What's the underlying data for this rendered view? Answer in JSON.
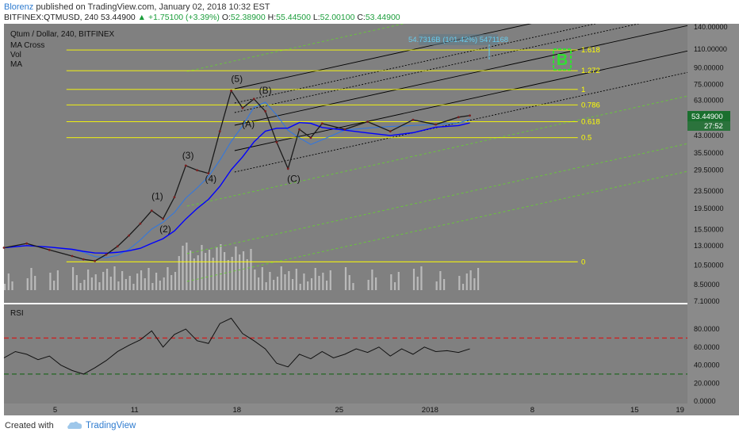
{
  "header": {
    "author": "Blorenz",
    "published": "published on TradingView.com, January 02, 2018 10:32 EST",
    "symbol_line": "BITFINEX:QTMUSD, 240",
    "last": "53.44900",
    "change_arrow": "▲",
    "change": "+1.75100 (+3.39%)",
    "open_label": "O:",
    "open": "52.38900",
    "high_label": "H:",
    "high": "55.44500",
    "low_label": "L:",
    "low": "52.00100",
    "close_label": "C:",
    "close": "53.44900"
  },
  "legend": {
    "title": "Qtum / Dollar, 240, BITFINEX",
    "items": [
      "MA Cross",
      "Vol",
      "MA"
    ]
  },
  "price_label": "53.44900",
  "countdown": "27:52",
  "measure_label": "54.7316B (101.42%) 5471168",
  "rsi_label": "RSI",
  "footer": {
    "created": "Created with",
    "brand": "TradingView"
  },
  "colors": {
    "background": "#808080",
    "fib": "#ffff00",
    "channel_black": "#000000",
    "channel_green": "#66cc33",
    "ma_fast": "#3377dd",
    "ma_slow": "#0000ff",
    "wave_path": "#2a2a2a",
    "price_label_bg": "#1a6f2e",
    "target_box": "#33dd33"
  },
  "chart_data": [
    {
      "type": "line",
      "title": "Qtum / Dollar, 240, BITFINEX",
      "y_scale": "log",
      "y_ticks": [
        "140.00000",
        "110.00000",
        "90.00000",
        "75.00000",
        "63.00000",
        "53.00000",
        "43.00000",
        "35.50000",
        "29.50000",
        "23.50000",
        "19.50000",
        "15.50000",
        "13.00000",
        "10.50000",
        "8.50000",
        "7.10000"
      ],
      "x_ticks": [
        "5",
        "11",
        "18",
        "25",
        "2018",
        "8",
        "15",
        "19"
      ],
      "price_series": [
        {
          "day": 0,
          "price": 12.7
        },
        {
          "day": 2,
          "price": 13.3
        },
        {
          "day": 4,
          "price": 12.4
        },
        {
          "day": 6,
          "price": 11.6
        },
        {
          "day": 7,
          "price": 11.2
        },
        {
          "day": 8,
          "price": 11.0
        },
        {
          "day": 9,
          "price": 11.8
        },
        {
          "day": 10,
          "price": 12.9
        },
        {
          "day": 11,
          "price": 14.5
        },
        {
          "day": 12,
          "price": 16.5
        },
        {
          "day": 13,
          "price": 19.0
        },
        {
          "day": 14,
          "price": 17.4
        },
        {
          "day": 15,
          "price": 22.0
        },
        {
          "day": 16,
          "price": 31.0
        },
        {
          "day": 17,
          "price": 29.5
        },
        {
          "day": 18,
          "price": 28.5
        },
        {
          "day": 19,
          "price": 45.0
        },
        {
          "day": 20,
          "price": 70.0
        },
        {
          "day": 21,
          "price": 58.0
        },
        {
          "day": 22,
          "price": 64.0
        },
        {
          "day": 23,
          "price": 56.0
        },
        {
          "day": 24,
          "price": 40.0
        },
        {
          "day": 25,
          "price": 30.0
        },
        {
          "day": 26,
          "price": 46.0
        },
        {
          "day": 27,
          "price": 42.0
        },
        {
          "day": 28,
          "price": 49.0
        },
        {
          "day": 30,
          "price": 46.0
        },
        {
          "day": 32,
          "price": 50.0
        },
        {
          "day": 34,
          "price": 45.0
        },
        {
          "day": 36,
          "price": 51.0
        },
        {
          "day": 38,
          "price": 48.5
        },
        {
          "day": 40,
          "price": 52.5
        },
        {
          "day": 41,
          "price": 53.449
        }
      ],
      "fib_levels": [
        {
          "label": "1.618",
          "price": 109.0
        },
        {
          "label": "1.272",
          "price": 87.0
        },
        {
          "label": "1",
          "price": 71.0
        },
        {
          "label": "0.786",
          "price": 60.0
        },
        {
          "label": "0.618",
          "price": 50.0
        },
        {
          "label": "0.5",
          "price": 42.0
        },
        {
          "label": "0",
          "price": 10.9
        }
      ],
      "wave_labels": [
        {
          "label": "(1)",
          "day": 13.5,
          "price": 21.5
        },
        {
          "label": "(2)",
          "day": 14.2,
          "price": 15.0
        },
        {
          "label": "(3)",
          "day": 16.2,
          "price": 33.5
        },
        {
          "label": "(4)",
          "day": 18.2,
          "price": 26.0
        },
        {
          "label": "(5)",
          "day": 20.5,
          "price": 77.0
        },
        {
          "label": "(A)",
          "day": 21.5,
          "price": 47.0
        },
        {
          "label": "(B)",
          "day": 23.0,
          "price": 68.0
        },
        {
          "label": "(C)",
          "day": 25.5,
          "price": 26.0
        }
      ]
    },
    {
      "type": "line",
      "title": "RSI",
      "y_ticks": [
        "80.0000",
        "60.0000",
        "40.0000",
        "20.0000",
        "0.0000"
      ],
      "levels": [
        70,
        30
      ],
      "values": [
        {
          "day": 0,
          "rsi": 48
        },
        {
          "day": 1,
          "rsi": 55
        },
        {
          "day": 2,
          "rsi": 52
        },
        {
          "day": 3,
          "rsi": 46
        },
        {
          "day": 4,
          "rsi": 50
        },
        {
          "day": 5,
          "rsi": 40
        },
        {
          "day": 6,
          "rsi": 34
        },
        {
          "day": 7,
          "rsi": 30
        },
        {
          "day": 8,
          "rsi": 37
        },
        {
          "day": 9,
          "rsi": 45
        },
        {
          "day": 10,
          "rsi": 55
        },
        {
          "day": 11,
          "rsi": 62
        },
        {
          "day": 12,
          "rsi": 68
        },
        {
          "day": 13,
          "rsi": 78
        },
        {
          "day": 14,
          "rsi": 60
        },
        {
          "day": 15,
          "rsi": 74
        },
        {
          "day": 16,
          "rsi": 80
        },
        {
          "day": 17,
          "rsi": 67
        },
        {
          "day": 18,
          "rsi": 64
        },
        {
          "day": 19,
          "rsi": 86
        },
        {
          "day": 20,
          "rsi": 92
        },
        {
          "day": 21,
          "rsi": 75
        },
        {
          "day": 22,
          "rsi": 67
        },
        {
          "day": 23,
          "rsi": 58
        },
        {
          "day": 24,
          "rsi": 42
        },
        {
          "day": 25,
          "rsi": 38
        },
        {
          "day": 26,
          "rsi": 52
        },
        {
          "day": 27,
          "rsi": 47
        },
        {
          "day": 28,
          "rsi": 55
        },
        {
          "day": 29,
          "rsi": 48
        },
        {
          "day": 30,
          "rsi": 52
        },
        {
          "day": 31,
          "rsi": 58
        },
        {
          "day": 32,
          "rsi": 54
        },
        {
          "day": 33,
          "rsi": 60
        },
        {
          "day": 34,
          "rsi": 50
        },
        {
          "day": 35,
          "rsi": 58
        },
        {
          "day": 36,
          "rsi": 52
        },
        {
          "day": 37,
          "rsi": 60
        },
        {
          "day": 38,
          "rsi": 55
        },
        {
          "day": 39,
          "rsi": 56
        },
        {
          "day": 40,
          "rsi": 54
        },
        {
          "day": 41,
          "rsi": 58
        }
      ]
    }
  ]
}
